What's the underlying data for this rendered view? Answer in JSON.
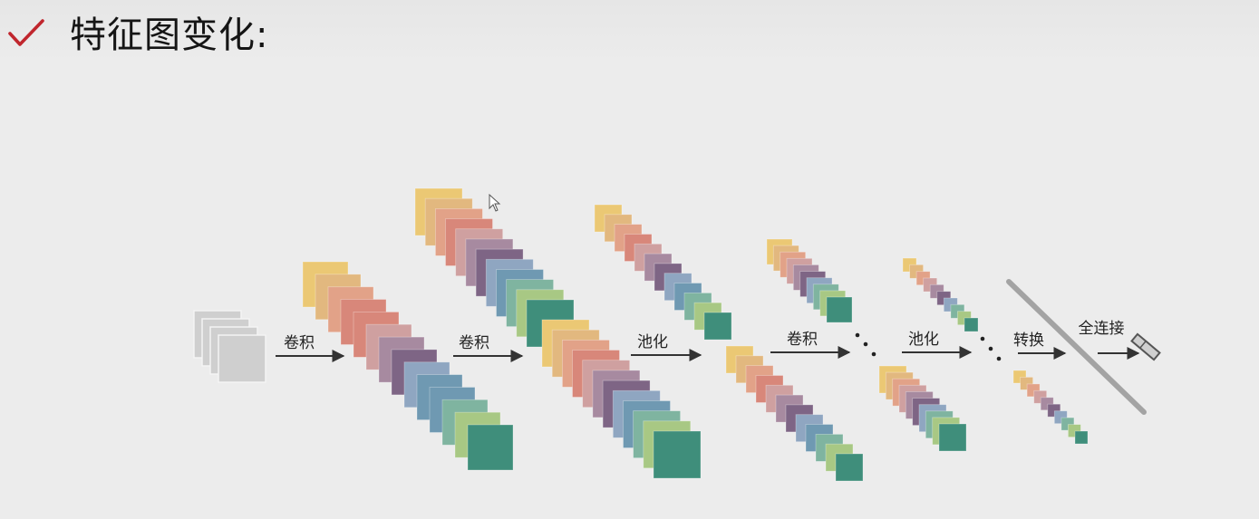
{
  "header": {
    "title": "特征图变化:",
    "icon": "check-icon",
    "icon_color": "#c0262d"
  },
  "diagram": {
    "operations": [
      "卷积",
      "卷积",
      "池化",
      "卷积",
      "池化",
      "转换",
      "全连接"
    ],
    "layer_palette": [
      "#ebc874",
      "#e2b87f",
      "#e2a288",
      "#d8877a",
      "#cfa0a0",
      "#a78aa0",
      "#7e6585",
      "#8fa6c1",
      "#6f99b2",
      "#7fb4a0",
      "#a8c884",
      "#3f8e7b"
    ],
    "input_color": "#cfcfcf",
    "divider_color": "#a3a3a3",
    "arrow_color": "#333333"
  }
}
